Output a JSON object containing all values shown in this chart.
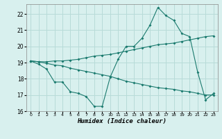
{
  "title": "",
  "xlabel": "Humidex (Indice chaleur)",
  "x": [
    0,
    1,
    2,
    3,
    4,
    5,
    6,
    7,
    8,
    9,
    10,
    11,
    12,
    13,
    14,
    15,
    16,
    17,
    18,
    19,
    20,
    21,
    22,
    23
  ],
  "line1": [
    19.1,
    18.9,
    18.6,
    17.8,
    17.8,
    17.2,
    17.1,
    16.9,
    16.3,
    16.3,
    18.1,
    19.2,
    20.0,
    20.0,
    20.5,
    21.3,
    22.4,
    21.9,
    21.6,
    20.8,
    20.6,
    18.4,
    16.7,
    17.1
  ],
  "line2": [
    19.1,
    19.05,
    19.05,
    19.1,
    19.1,
    19.15,
    19.2,
    19.3,
    19.4,
    19.45,
    19.5,
    19.6,
    19.7,
    19.8,
    19.9,
    20.0,
    20.1,
    20.15,
    20.2,
    20.3,
    20.4,
    20.5,
    20.6,
    20.65
  ],
  "line3": [
    19.1,
    19.05,
    18.95,
    18.85,
    18.8,
    18.65,
    18.55,
    18.45,
    18.35,
    18.25,
    18.15,
    18.0,
    17.85,
    17.75,
    17.65,
    17.55,
    17.45,
    17.4,
    17.35,
    17.25,
    17.2,
    17.1,
    17.0,
    17.0
  ],
  "line_color": "#1a7a6e",
  "bg_color": "#d8f0ee",
  "grid_color": "#b8dbd8",
  "ylim": [
    16,
    22.6
  ],
  "yticks": [
    16,
    17,
    18,
    19,
    20,
    21,
    22
  ],
  "xlim": [
    -0.5,
    23.5
  ],
  "xtick_fontsize": 4.5,
  "ytick_fontsize": 5.5,
  "xlabel_fontsize": 6.5,
  "marker_size": 2.0,
  "line_width": 0.8
}
